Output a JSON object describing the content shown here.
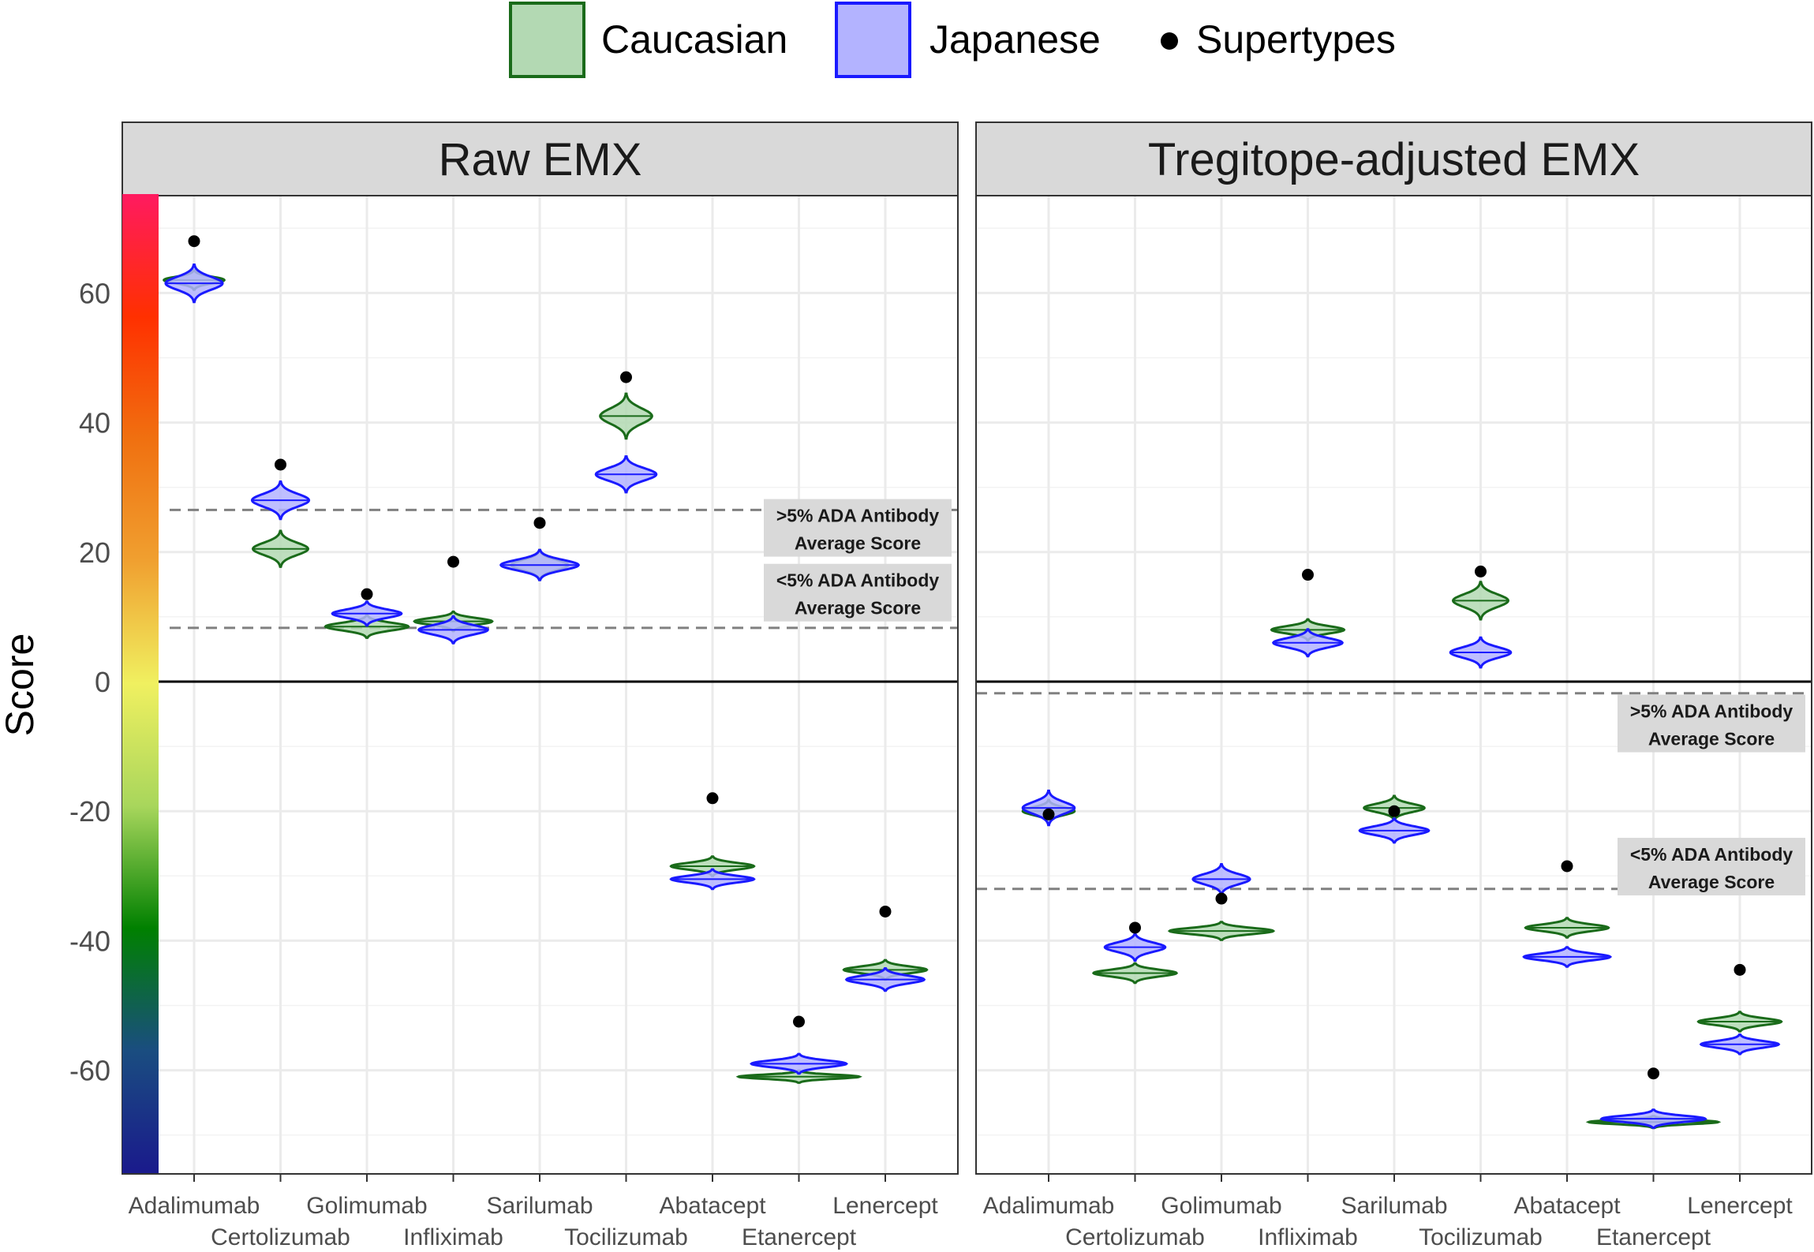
{
  "chart_data": {
    "type": "violin",
    "ylabel": "Score",
    "ylim": [
      -76,
      76
    ],
    "yticks": [
      -60,
      -40,
      -20,
      0,
      20,
      40,
      60
    ],
    "ytick_labels": [
      "-60",
      "-40",
      "-20",
      "0",
      "20",
      "40",
      "60"
    ],
    "categories": [
      "Adalimumab",
      "Certolizumab",
      "Golimumab",
      "Infliximab",
      "Sarilumab",
      "Tocilizumab",
      "Abatacept",
      "Etanercept",
      "Lenercept"
    ],
    "legend": [
      {
        "name": "Caucasian",
        "fill": "#b3d9b3",
        "stroke": "#1a6b1a"
      },
      {
        "name": "Japanese",
        "fill": "#b3b3ff",
        "stroke": "#1a1aff"
      },
      {
        "name": "Supertypes",
        "fill": "#000000"
      }
    ],
    "colorbar": {
      "stops": [
        "#1a1a8c",
        "#1a4d80",
        "#008000",
        "#a8d65c",
        "#f0f060",
        "#f0a030",
        "#f07010",
        "#ff3000",
        "#ff1a60"
      ]
    },
    "panels": [
      {
        "title": "Raw EMX",
        "threshold_lines": [
          {
            "value": 26.5,
            "label_line1": ">5% ADA Antibody",
            "label_line2": "Average Score",
            "label_value": 23.8
          },
          {
            "value": 8.3,
            "label_line1": "<5% ADA Antibody",
            "label_line2": "Average Score",
            "label_value": 13.8
          }
        ],
        "series": [
          {
            "name": "Caucasian",
            "center": [
              62,
              20.5,
              8.5,
              9.3,
              18,
              41,
              -28.5,
              -61,
              -44.5
            ],
            "spread": [
              1.3,
              2.4,
              1.5,
              1.3,
              2.0,
              3.0,
              1.3,
              0.8,
              1.3
            ],
            "width": [
              0.35,
              0.32,
              0.48,
              0.45,
              0.33,
              0.3,
              0.48,
              0.7,
              0.48
            ]
          },
          {
            "name": "Japanese",
            "center": [
              61.5,
              28,
              10.5,
              8,
              18,
              32,
              -30.5,
              -59,
              -46
            ],
            "spread": [
              2.5,
              2.5,
              1.6,
              1.8,
              2.0,
              2.4,
              1.3,
              1.3,
              1.5
            ],
            "width": [
              0.33,
              0.33,
              0.4,
              0.4,
              0.45,
              0.35,
              0.48,
              0.55,
              0.45
            ]
          }
        ],
        "supertypes": [
          68,
          33.5,
          13.5,
          18.5,
          24.5,
          47,
          -18,
          -52.5,
          -35.5
        ]
      },
      {
        "title": "Tregitope-adjusted EMX",
        "threshold_lines": [
          {
            "value": -1.8,
            "label_line1": ">5% ADA Antibody",
            "label_line2": "Average Score",
            "label_value": -6.4
          },
          {
            "value": -32,
            "label_line1": "<5% ADA Antibody",
            "label_line2": "Average Score",
            "label_value": -28.5
          }
        ],
        "series": [
          {
            "name": "Caucasian",
            "center": [
              -20,
              -45,
              -38.5,
              8,
              -19.5,
              12.5,
              -38,
              -68,
              -52.5
            ],
            "spread": [
              1.5,
              1.3,
              1.2,
              1.4,
              1.6,
              2.5,
              1.3,
              0.8,
              1.3
            ],
            "width": [
              0.3,
              0.48,
              0.6,
              0.42,
              0.35,
              0.32,
              0.48,
              0.75,
              0.48
            ]
          },
          {
            "name": "Japanese",
            "center": [
              -19.5,
              -41,
              -30.5,
              6,
              -23,
              4.5,
              -42.5,
              -67.5,
              -56
            ],
            "spread": [
              2.3,
              1.8,
              2.0,
              1.8,
              1.6,
              2.0,
              1.3,
              1.2,
              1.3
            ],
            "width": [
              0.3,
              0.35,
              0.33,
              0.4,
              0.4,
              0.35,
              0.5,
              0.6,
              0.45
            ]
          }
        ],
        "supertypes": [
          -20.5,
          -38,
          -33.5,
          16.5,
          -20,
          17,
          -28.5,
          -60.5,
          -44.5
        ]
      }
    ]
  }
}
